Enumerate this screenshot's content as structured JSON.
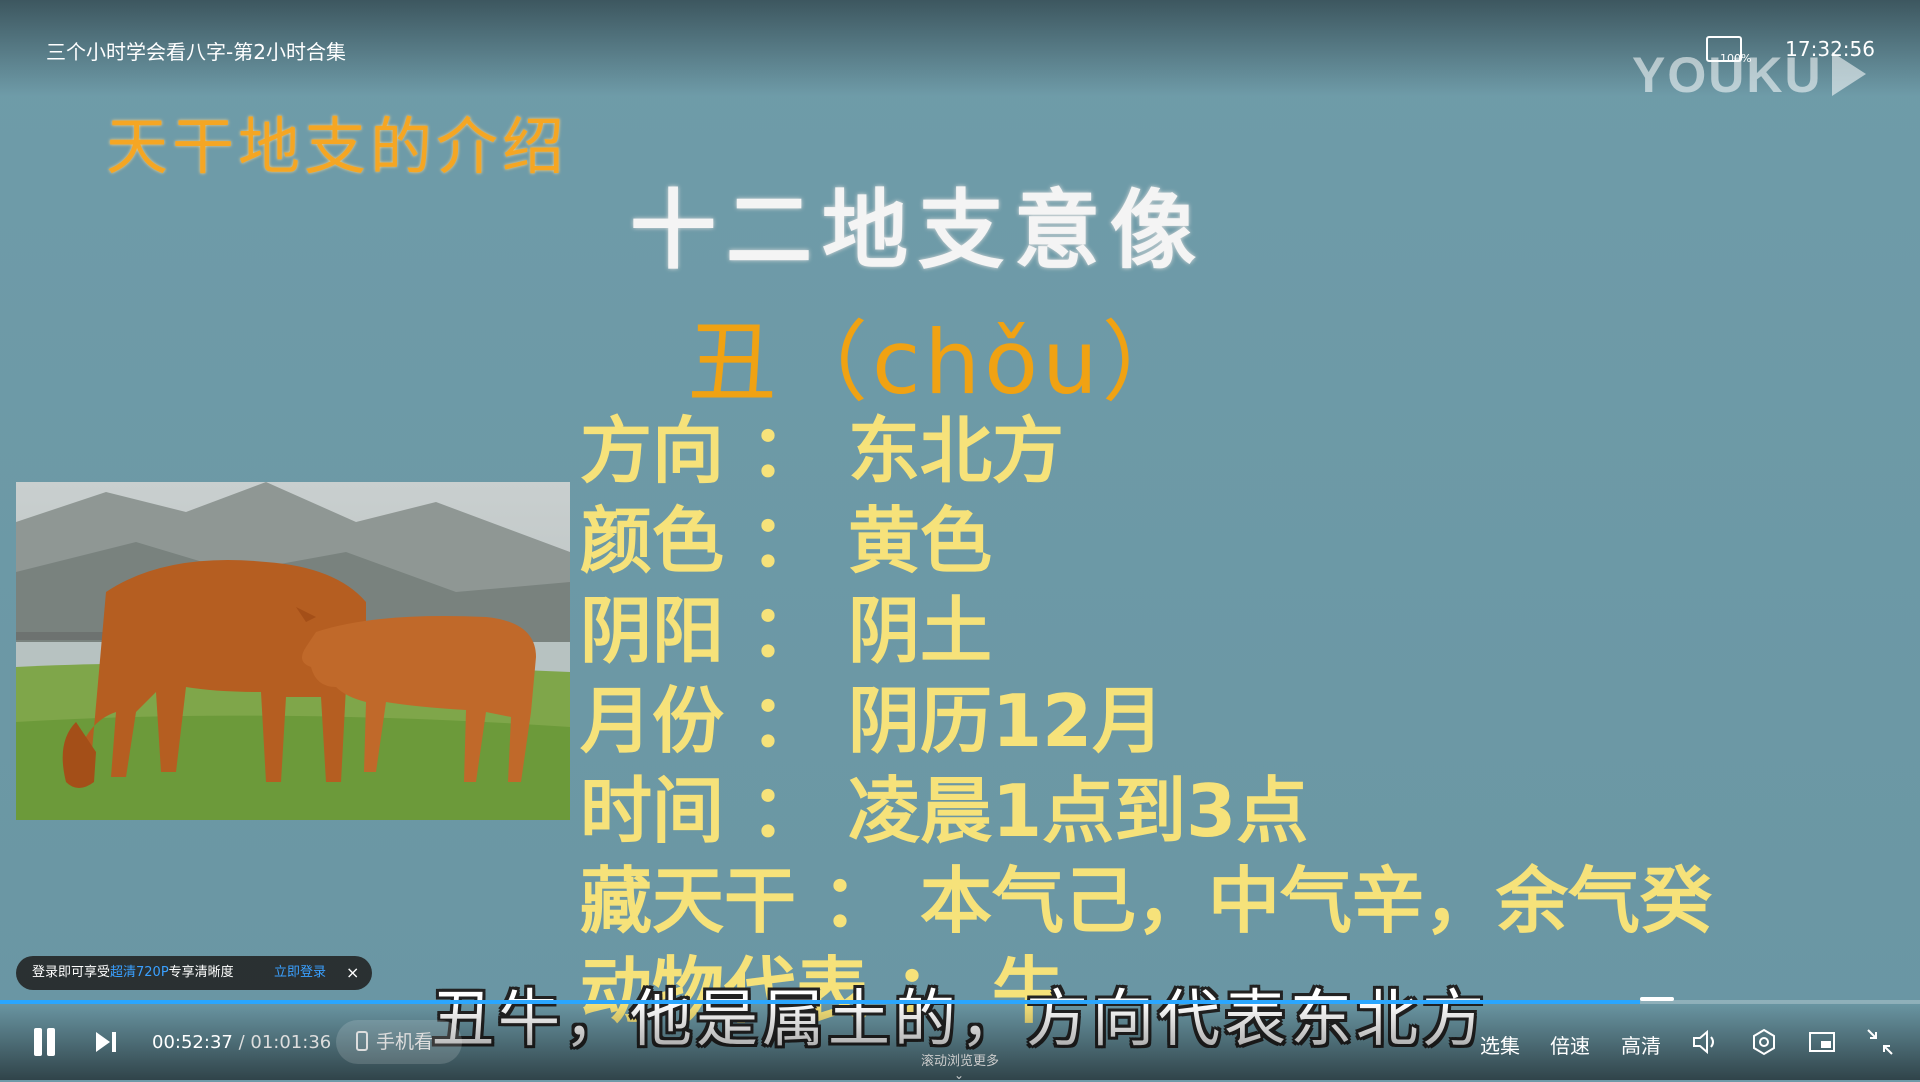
{
  "player": {
    "title": "三个小时学会看八字-第2小时合集",
    "clock": "17:32:56",
    "zoom_percent": "100%",
    "logo_text": "YOUKU",
    "current_time": "00:52:37",
    "time_separator": "/",
    "duration": "01:01:36",
    "progress": 0.854,
    "mobile_watch_label": "手机看",
    "scroll_hint": "滚动浏览更多",
    "right_controls": {
      "episodes": "选集",
      "speed": "倍速",
      "quality": "高清"
    }
  },
  "login_toast": {
    "text_before": "登录即可享受",
    "highlight": "超清720P",
    "text_after": "专享清晰度",
    "button": "立即登录",
    "close": "×"
  },
  "slide": {
    "section_title": "天干地支的介绍",
    "main_title": "十二地支意像",
    "branch": "丑（chǒu）",
    "attributes": [
      {
        "label": "方向",
        "value": "东北方"
      },
      {
        "label": "颜色",
        "value": "黄色"
      },
      {
        "label": "阴阳",
        "value": "阴土"
      },
      {
        "label": "月份",
        "value": "阴历12月"
      },
      {
        "label": "时间",
        "value": "凌晨1点到3点"
      },
      {
        "label": "藏天干",
        "value": "本气己，中气辛，余气癸"
      },
      {
        "label": "动物代表",
        "value": "牛"
      }
    ],
    "attr_separator": "："
  },
  "subtitle": "丑牛，他是属土的，方向代表东北方",
  "colors": {
    "slide_bg": "#6e9aa8",
    "section_orange": "#f5a623",
    "attr_yellow": "#f6e27a",
    "progress_blue": "#2aa6ff"
  }
}
